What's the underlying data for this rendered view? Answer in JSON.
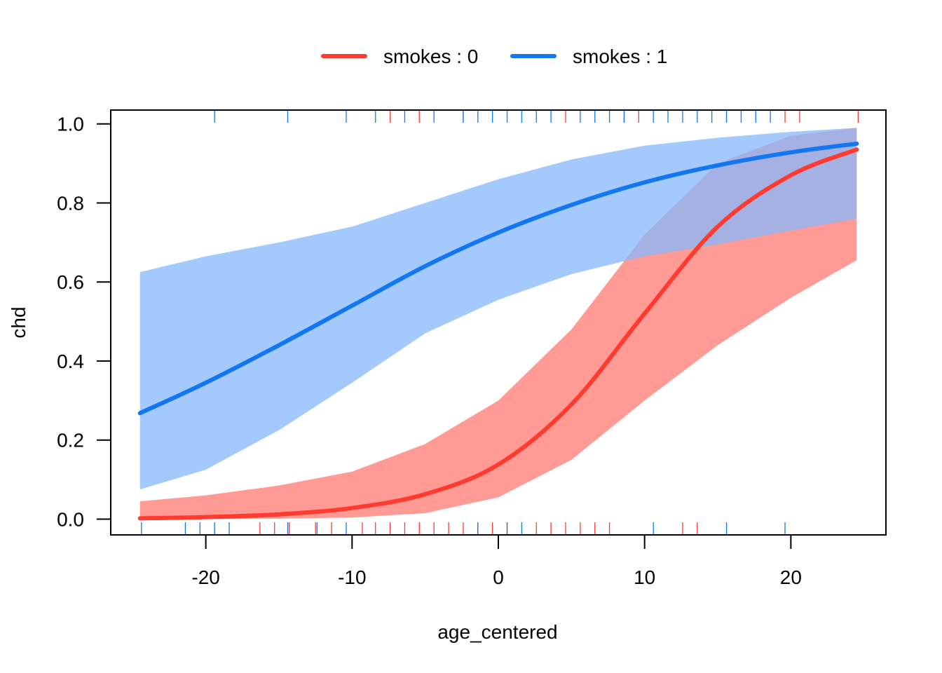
{
  "chart_data": {
    "type": "line",
    "title": "",
    "xlabel": "age_centered",
    "ylabel": "chd",
    "xlim": [
      -26.5,
      26.5
    ],
    "ylim": [
      -0.04,
      1.035
    ],
    "xticks": [
      -20,
      -10,
      0,
      10,
      20
    ],
    "xtick_labels": [
      "-20",
      "-10",
      "0",
      "10",
      "20"
    ],
    "yticks": [
      0.0,
      0.2,
      0.4,
      0.6,
      0.8,
      1.0
    ],
    "ytick_labels": [
      "0.0",
      "0.2",
      "0.4",
      "0.6",
      "0.8",
      "1.0"
    ],
    "legend_position": "top",
    "grid": false,
    "series": [
      {
        "name": "smokes : 0",
        "color": "#FF3B30",
        "band_color": "#FF9A95",
        "x": [
          -24.5,
          -20,
          -15,
          -10,
          -5,
          0,
          5,
          10,
          15,
          20,
          24.5
        ],
        "y": [
          0.002,
          0.005,
          0.012,
          0.028,
          0.063,
          0.138,
          0.29,
          0.52,
          0.74,
          0.87,
          0.935
        ],
        "lower": [
          0.0,
          0.0,
          0.001,
          0.004,
          0.015,
          0.055,
          0.15,
          0.3,
          0.44,
          0.56,
          0.655
        ],
        "upper": [
          0.045,
          0.06,
          0.085,
          0.12,
          0.19,
          0.3,
          0.48,
          0.72,
          0.9,
          0.97,
          0.99
        ]
      },
      {
        "name": "smokes : 1",
        "color": "#1377F2",
        "band_color": "#85B8FC",
        "x": [
          -24.5,
          -20,
          -15,
          -10,
          -5,
          0,
          5,
          10,
          15,
          20,
          24.5
        ],
        "y": [
          0.268,
          0.345,
          0.44,
          0.54,
          0.64,
          0.725,
          0.795,
          0.852,
          0.895,
          0.928,
          0.95
        ],
        "lower": [
          0.075,
          0.125,
          0.225,
          0.345,
          0.47,
          0.555,
          0.62,
          0.665,
          0.695,
          0.73,
          0.76
        ],
        "upper": [
          0.625,
          0.665,
          0.7,
          0.74,
          0.8,
          0.86,
          0.91,
          0.945,
          0.965,
          0.98,
          0.99
        ]
      }
    ],
    "rug_bottom": {
      "smokes : 0": [
        -16.3,
        -15.3,
        -14.3,
        -12.5,
        -11.4,
        -9.3,
        -8.4,
        -7.4,
        -6.4,
        -5.4,
        -4.4,
        -3.4,
        -2.4,
        -1.4,
        -0.4,
        0.6,
        2.6,
        3.6,
        4.6,
        5.6,
        6.6,
        7.6,
        12.6,
        13.6
      ],
      "smokes : 1": [
        -24.4,
        -21.4,
        -20.4,
        -19.4,
        -18.4,
        -14.4,
        -12.4,
        -10.4,
        -1.4,
        0.6,
        1.6,
        10.6,
        15.6,
        19.6
      ]
    },
    "rug_top": {
      "smokes : 0": [
        -7.4,
        -5.4,
        -2.4,
        4.6,
        8.6,
        9.6,
        19.6,
        20.6,
        24.6
      ],
      "smokes : 1": [
        -19.4,
        -14.4,
        -10.4,
        -8.4,
        -6.4,
        -4.4,
        -2.4,
        -1.4,
        -0.4,
        0.6,
        1.6,
        2.6,
        3.6,
        5.6,
        6.6,
        7.6,
        8.6,
        10.6,
        11.6,
        12.6,
        13.6,
        14.6,
        15.6,
        16.6,
        17.6,
        18.6
      ]
    }
  }
}
